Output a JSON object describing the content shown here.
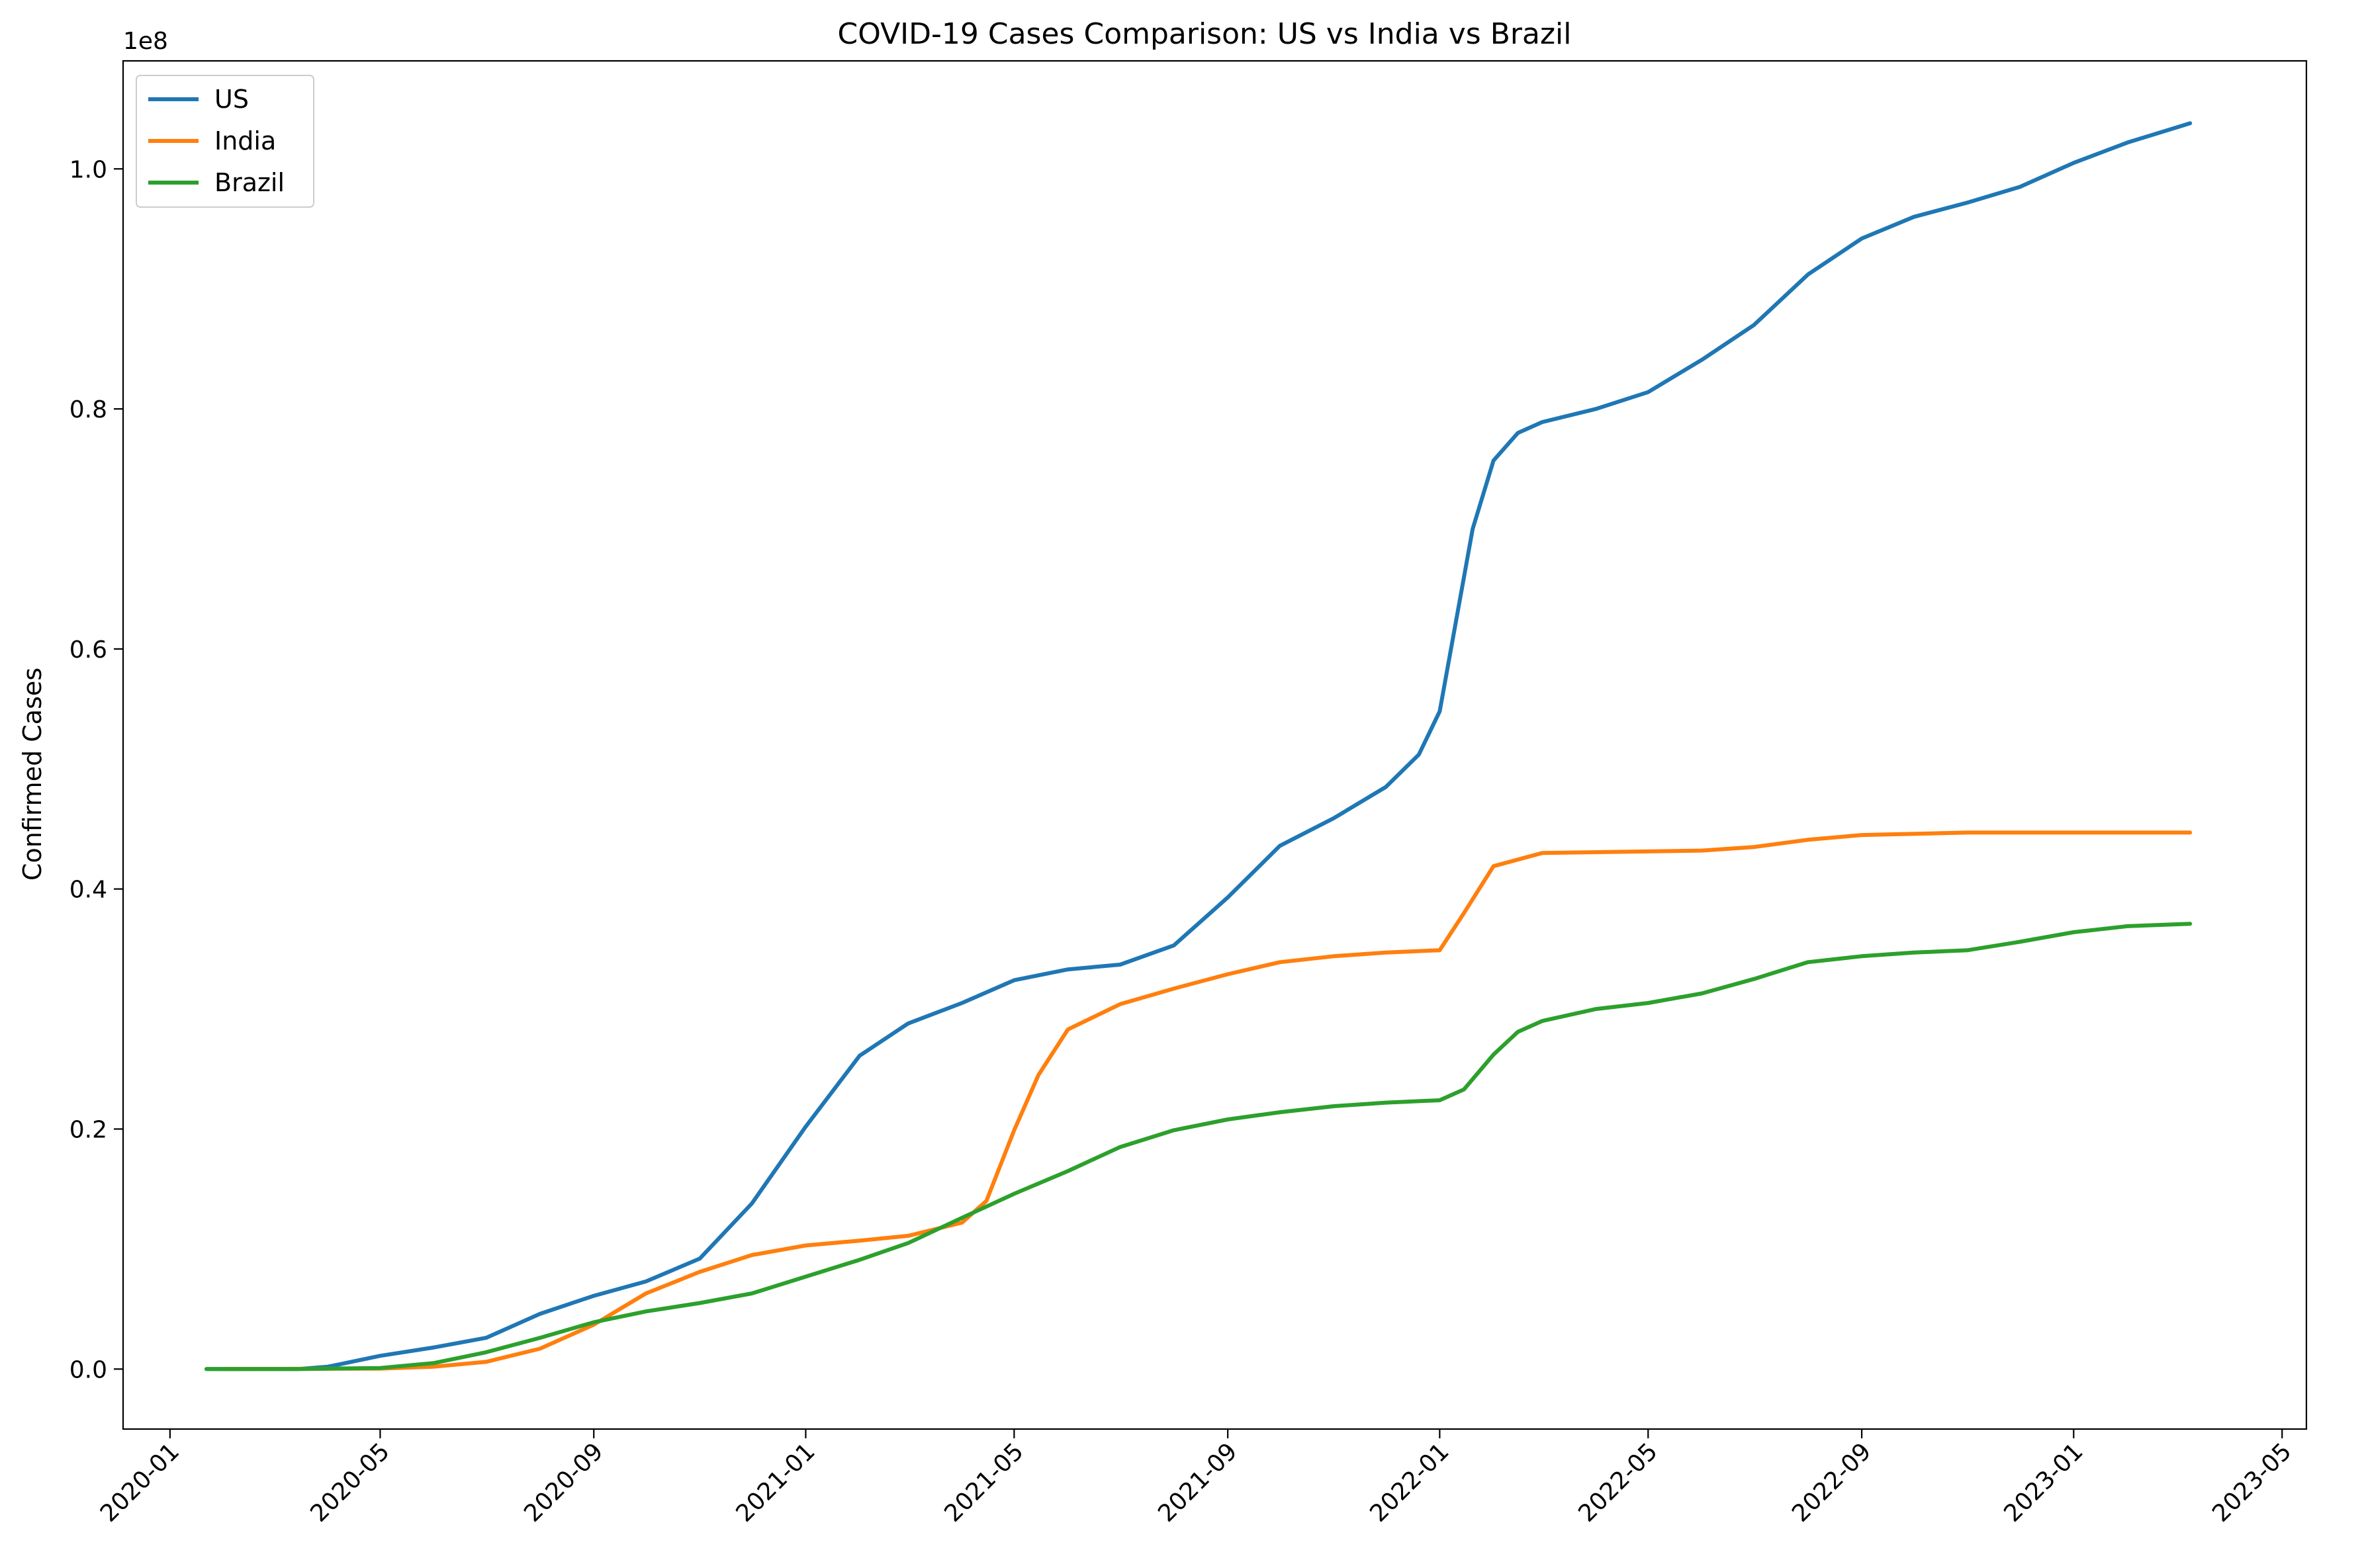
{
  "chart_data": {
    "type": "line",
    "title": "COVID-19 Cases Comparison: US vs India vs Brazil",
    "xlabel": "",
    "ylabel": "Confirmed Cases",
    "y_offset_label": "1e8",
    "x_axis": "date",
    "xlim": [
      "2019-12-05",
      "2023-05-15"
    ],
    "ylim": [
      -0.05,
      1.09
    ],
    "y_scale_note": "values in units of 1e8",
    "xticks": [
      "2020-01",
      "2020-05",
      "2020-09",
      "2021-01",
      "2021-05",
      "2021-09",
      "2022-01",
      "2022-05",
      "2022-09",
      "2023-01",
      "2023-05"
    ],
    "yticks": [
      "0.0",
      "0.2",
      "0.4",
      "0.6",
      "0.8",
      "1.0"
    ],
    "grid": false,
    "legend": "top-left",
    "series": [
      {
        "name": "US",
        "color": "#1f77b4",
        "points": [
          [
            "2020-01-22",
            0.0
          ],
          [
            "2020-03-15",
            0.0
          ],
          [
            "2020-04-01",
            0.002
          ],
          [
            "2020-05-01",
            0.011
          ],
          [
            "2020-06-01",
            0.018
          ],
          [
            "2020-07-01",
            0.026
          ],
          [
            "2020-08-01",
            0.046
          ],
          [
            "2020-09-01",
            0.061
          ],
          [
            "2020-10-01",
            0.073
          ],
          [
            "2020-11-01",
            0.092
          ],
          [
            "2020-12-01",
            0.138
          ],
          [
            "2021-01-01",
            0.202
          ],
          [
            "2021-02-01",
            0.261
          ],
          [
            "2021-03-01",
            0.288
          ],
          [
            "2021-04-01",
            0.305
          ],
          [
            "2021-05-01",
            0.324
          ],
          [
            "2021-06-01",
            0.333
          ],
          [
            "2021-07-01",
            0.337
          ],
          [
            "2021-08-01",
            0.353
          ],
          [
            "2021-09-01",
            0.393
          ],
          [
            "2021-10-01",
            0.436
          ],
          [
            "2021-11-01",
            0.459
          ],
          [
            "2021-12-01",
            0.485
          ],
          [
            "2021-12-20",
            0.512
          ],
          [
            "2022-01-01",
            0.548
          ],
          [
            "2022-01-10",
            0.62
          ],
          [
            "2022-01-20",
            0.7
          ],
          [
            "2022-02-01",
            0.757
          ],
          [
            "2022-02-15",
            0.78
          ],
          [
            "2022-03-01",
            0.789
          ],
          [
            "2022-04-01",
            0.8
          ],
          [
            "2022-05-01",
            0.814
          ],
          [
            "2022-06-01",
            0.841
          ],
          [
            "2022-07-01",
            0.87
          ],
          [
            "2022-08-01",
            0.912
          ],
          [
            "2022-09-01",
            0.942
          ],
          [
            "2022-10-01",
            0.96
          ],
          [
            "2022-11-01",
            0.972
          ],
          [
            "2022-12-01",
            0.985
          ],
          [
            "2023-01-01",
            1.005
          ],
          [
            "2023-02-01",
            1.022
          ],
          [
            "2023-03-09",
            1.038
          ]
        ]
      },
      {
        "name": "India",
        "color": "#ff7f0e",
        "points": [
          [
            "2020-01-30",
            0.0
          ],
          [
            "2020-05-01",
            0.0004
          ],
          [
            "2020-06-01",
            0.002
          ],
          [
            "2020-07-01",
            0.006
          ],
          [
            "2020-08-01",
            0.017
          ],
          [
            "2020-09-01",
            0.037
          ],
          [
            "2020-10-01",
            0.063
          ],
          [
            "2020-11-01",
            0.081
          ],
          [
            "2020-12-01",
            0.095
          ],
          [
            "2021-01-01",
            0.103
          ],
          [
            "2021-02-01",
            0.107
          ],
          [
            "2021-03-01",
            0.111
          ],
          [
            "2021-04-01",
            0.122
          ],
          [
            "2021-04-15",
            0.14
          ],
          [
            "2021-05-01",
            0.199
          ],
          [
            "2021-05-15",
            0.245
          ],
          [
            "2021-06-01",
            0.283
          ],
          [
            "2021-07-01",
            0.304
          ],
          [
            "2021-08-01",
            0.317
          ],
          [
            "2021-09-01",
            0.329
          ],
          [
            "2021-10-01",
            0.339
          ],
          [
            "2021-11-01",
            0.344
          ],
          [
            "2021-12-01",
            0.347
          ],
          [
            "2022-01-01",
            0.349
          ],
          [
            "2022-01-15",
            0.38
          ],
          [
            "2022-02-01",
            0.419
          ],
          [
            "2022-03-01",
            0.43
          ],
          [
            "2022-06-01",
            0.432
          ],
          [
            "2022-07-01",
            0.435
          ],
          [
            "2022-08-01",
            0.441
          ],
          [
            "2022-09-01",
            0.445
          ],
          [
            "2022-11-01",
            0.447
          ],
          [
            "2023-03-09",
            0.447
          ]
        ]
      },
      {
        "name": "Brazil",
        "color": "#2ca02c",
        "points": [
          [
            "2020-01-22",
            0.0
          ],
          [
            "2020-03-15",
            0.0
          ],
          [
            "2020-05-01",
            0.0009
          ],
          [
            "2020-06-01",
            0.005
          ],
          [
            "2020-07-01",
            0.014
          ],
          [
            "2020-08-01",
            0.026
          ],
          [
            "2020-09-01",
            0.039
          ],
          [
            "2020-10-01",
            0.048
          ],
          [
            "2020-11-01",
            0.055
          ],
          [
            "2020-12-01",
            0.063
          ],
          [
            "2021-01-01",
            0.077
          ],
          [
            "2021-02-01",
            0.091
          ],
          [
            "2021-03-01",
            0.105
          ],
          [
            "2021-04-01",
            0.126
          ],
          [
            "2021-05-01",
            0.146
          ],
          [
            "2021-06-01",
            0.165
          ],
          [
            "2021-07-01",
            0.185
          ],
          [
            "2021-08-01",
            0.199
          ],
          [
            "2021-09-01",
            0.208
          ],
          [
            "2021-10-01",
            0.214
          ],
          [
            "2021-11-01",
            0.219
          ],
          [
            "2021-12-01",
            0.222
          ],
          [
            "2022-01-01",
            0.224
          ],
          [
            "2022-01-15",
            0.233
          ],
          [
            "2022-02-01",
            0.262
          ],
          [
            "2022-02-15",
            0.281
          ],
          [
            "2022-03-01",
            0.29
          ],
          [
            "2022-04-01",
            0.3
          ],
          [
            "2022-05-01",
            0.305
          ],
          [
            "2022-06-01",
            0.313
          ],
          [
            "2022-07-01",
            0.325
          ],
          [
            "2022-08-01",
            0.339
          ],
          [
            "2022-09-01",
            0.344
          ],
          [
            "2022-10-01",
            0.347
          ],
          [
            "2022-11-01",
            0.349
          ],
          [
            "2022-12-01",
            0.356
          ],
          [
            "2023-01-01",
            0.364
          ],
          [
            "2023-02-01",
            0.369
          ],
          [
            "2023-03-09",
            0.371
          ]
        ]
      }
    ]
  }
}
